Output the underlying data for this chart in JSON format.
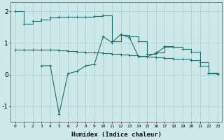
{
  "xlabel": "Humidex (Indice chaleur)",
  "x": [
    0,
    1,
    2,
    3,
    4,
    5,
    6,
    7,
    8,
    9,
    10,
    11,
    12,
    13,
    14,
    15,
    16,
    17,
    18,
    19,
    20,
    21,
    22,
    23
  ],
  "line1": [
    2.0,
    1.6,
    1.7,
    1.75,
    1.8,
    1.82,
    1.83,
    1.84,
    1.84,
    1.85,
    1.87,
    1.05,
    1.25,
    1.2,
    1.05,
    0.65,
    0.7,
    0.9,
    0.88,
    0.8,
    0.73,
    0.38,
    0.06,
    0.04
  ],
  "line2": [
    0.78,
    0.78,
    0.78,
    0.78,
    0.78,
    0.77,
    0.75,
    0.73,
    0.71,
    0.69,
    0.67,
    0.65,
    0.63,
    0.61,
    0.59,
    0.57,
    0.55,
    0.53,
    0.51,
    0.49,
    0.46,
    0.28,
    0.04,
    0.02
  ],
  "line3": [
    null,
    null,
    null,
    0.28,
    0.28,
    -1.25,
    0.03,
    0.1,
    0.28,
    0.32,
    1.2,
    1.02,
    1.27,
    1.17,
    0.57,
    0.57,
    0.68,
    0.87,
    0.87,
    null,
    null,
    null,
    null,
    null
  ],
  "line_color": "#1f7070",
  "bg_color": "#cce8e8",
  "grid_color": "#aacece",
  "ylim": [
    -1.5,
    2.3
  ],
  "yticks": [
    -1,
    0,
    1,
    2
  ],
  "figsize": [
    3.2,
    2.0
  ],
  "dpi": 100
}
